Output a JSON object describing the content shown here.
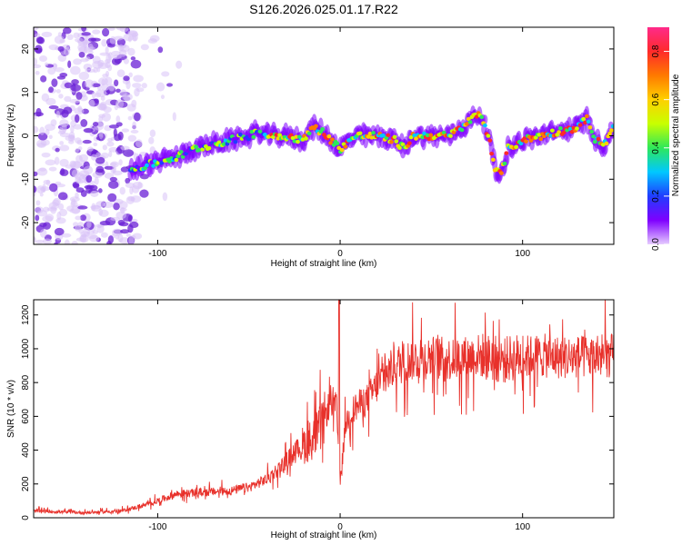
{
  "title": "S126.2026.025.01.17.R22",
  "colors": {
    "snr_line": "#e8312b",
    "spectrogram_background_shade": "#d9c2f7",
    "spectrogram_dark_blob": "#6a1fd6",
    "colormap": [
      "#e6ccff",
      "#7f00ff",
      "#1f3dff",
      "#00c8ff",
      "#2ee85a",
      "#c8ff00",
      "#ffd000",
      "#ff7a00",
      "#ff2a2a",
      "#ff2a8a"
    ]
  },
  "chart_data": [
    {
      "type": "heatmap",
      "name": "spectrogram",
      "xlabel": "Height of straight line (km)",
      "ylabel": "Frequency (Hz)",
      "xlim": [
        -168,
        150
      ],
      "ylim": [
        -25,
        25
      ],
      "xticks": [
        -100,
        0,
        100
      ],
      "xtick_labels": [
        "-100",
        "0",
        "100"
      ],
      "yticks": [
        -20,
        -10,
        0,
        10,
        20
      ],
      "ytick_labels": [
        "-20",
        "-10",
        "0",
        "10",
        "20"
      ],
      "colorbar": {
        "label": "Normalized spectral amplitude",
        "range": [
          0,
          0.9
        ],
        "ticks": [
          0.0,
          0.2,
          0.4,
          0.6,
          0.8
        ],
        "tick_labels": [
          "0.0",
          "0.2",
          "0.4",
          "0.6",
          "0.8"
        ]
      },
      "ridge": {
        "x": [
          -115,
          -100,
          -90,
          -80,
          -70,
          -60,
          -50,
          -45,
          -40,
          -30,
          -20,
          -15,
          -10,
          -5,
          0,
          5,
          10,
          20,
          30,
          35,
          40,
          50,
          60,
          70,
          75,
          78,
          82,
          85,
          88,
          92,
          100,
          110,
          120,
          130,
          135,
          140,
          145,
          150
        ],
        "y": [
          -8,
          -6,
          -5,
          -3,
          -2,
          -1,
          0,
          1,
          0,
          0,
          -1,
          2,
          1,
          -1,
          -3,
          -1,
          0,
          0,
          -1,
          -3,
          0,
          0,
          0,
          3,
          5,
          4,
          -1,
          -8,
          -9,
          -3,
          -1,
          0,
          1,
          2,
          4,
          -1,
          -2,
          2
        ]
      }
    },
    {
      "type": "line",
      "name": "snr",
      "xlabel": "Height of straight line (km)",
      "ylabel": "SNR (10 * v/v)",
      "xlim": [
        -168,
        150
      ],
      "ylim": [
        0,
        1290
      ],
      "xticks": [
        -100,
        0,
        100
      ],
      "xtick_labels": [
        "-100",
        "0",
        "100"
      ],
      "yticks": [
        0,
        200,
        400,
        600,
        800,
        1000,
        1200
      ],
      "ytick_labels": [
        "0",
        "200",
        "400",
        "600",
        "800",
        "1000",
        "1200"
      ],
      "trend": {
        "x": [
          -168,
          -140,
          -120,
          -105,
          -90,
          -75,
          -60,
          -50,
          -40,
          -30,
          -25,
          -20,
          -15,
          -10,
          -5,
          -2,
          0,
          3,
          8,
          15,
          20,
          30,
          40,
          50,
          60,
          70,
          75,
          80,
          85,
          90,
          95,
          100,
          110,
          120,
          130,
          140,
          150
        ],
        "y": [
          40,
          30,
          40,
          80,
          140,
          150,
          160,
          180,
          230,
          330,
          400,
          430,
          470,
          540,
          700,
          650,
          200,
          560,
          650,
          700,
          780,
          900,
          940,
          950,
          940,
          950,
          960,
          950,
          940,
          930,
          950,
          950,
          960,
          950,
          950,
          950,
          960
        ]
      }
    }
  ]
}
